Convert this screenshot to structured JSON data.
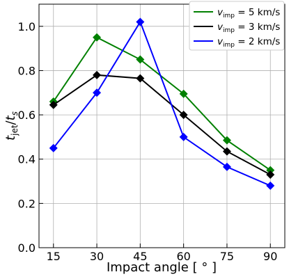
{
  "chart_data": {
    "type": "line",
    "xlabel": "Impact angle [ ° ]",
    "ylabel_main": "t",
    "ylabel_main_sub": "jet",
    "ylabel_sep": "/",
    "ylabel_den": "t",
    "ylabel_den_sub": "s",
    "x": [
      15,
      30,
      45,
      60,
      75,
      90
    ],
    "xticks": [
      "15",
      "30",
      "45",
      "60",
      "75",
      "90"
    ],
    "yticks": [
      "0.0",
      "0.2",
      "0.4",
      "0.6",
      "0.8",
      "1.0"
    ],
    "ylim": [
      0.0,
      1.1
    ],
    "grid": true,
    "legend_position": "top-right",
    "series": [
      {
        "name": "v_imp = 5 km/s",
        "label_prefix": "v",
        "label_sub": "imp",
        "label_suffix": " = 5 km/s",
        "color": "#008000",
        "marker": "diamond",
        "values": [
          0.66,
          0.95,
          0.85,
          0.695,
          0.485,
          0.35
        ]
      },
      {
        "name": "v_imp = 3 km/s",
        "label_prefix": "v",
        "label_sub": "imp",
        "label_suffix": " = 3 km/s",
        "color": "#000000",
        "marker": "diamond",
        "values": [
          0.645,
          0.78,
          0.765,
          0.6,
          0.435,
          0.33
        ]
      },
      {
        "name": "v_imp = 2 km/s",
        "label_prefix": "v",
        "label_sub": "imp",
        "label_suffix": " = 2 km/s",
        "color": "#0000ff",
        "marker": "diamond",
        "values": [
          0.45,
          0.7,
          1.02,
          0.5,
          0.365,
          0.28
        ]
      }
    ]
  }
}
